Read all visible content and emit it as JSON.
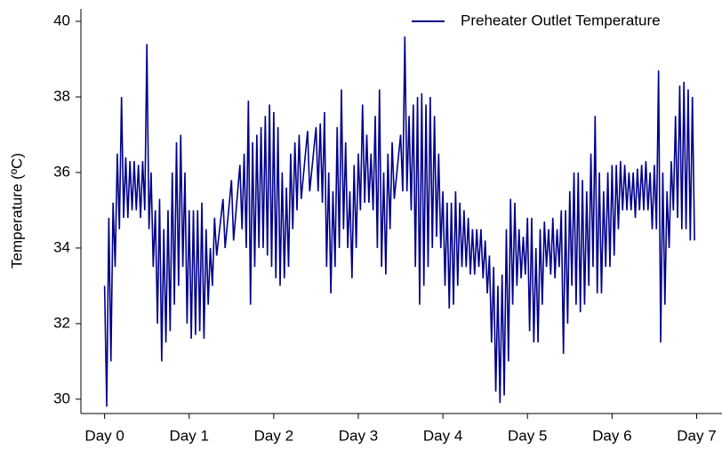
{
  "chart_data": {
    "type": "line",
    "ylabel": "Temperature (ºC)",
    "xlim": [
      -0.28,
      7.3
    ],
    "ylim": [
      29.62,
      40.33
    ],
    "xticks": [
      {
        "value": 0,
        "label": "Day 0"
      },
      {
        "value": 1,
        "label": "Day 1"
      },
      {
        "value": 2,
        "label": "Day 2"
      },
      {
        "value": 3,
        "label": "Day 3"
      },
      {
        "value": 4,
        "label": "Day 4"
      },
      {
        "value": 5,
        "label": "Day 5"
      },
      {
        "value": 6,
        "label": "Day 6"
      },
      {
        "value": 7,
        "label": "Day 7"
      }
    ],
    "yticks": [
      30,
      32,
      34,
      36,
      38,
      40
    ],
    "legend": "upper right",
    "x": [
      0,
      0.025,
      0.05,
      0.075,
      0.1,
      0.125,
      0.15,
      0.175,
      0.2,
      0.225,
      0.25,
      0.275,
      0.3,
      0.325,
      0.35,
      0.375,
      0.4,
      0.425,
      0.45,
      0.475,
      0.5,
      0.525,
      0.55,
      0.575,
      0.6,
      0.625,
      0.65,
      0.675,
      0.7,
      0.725,
      0.75,
      0.775,
      0.8,
      0.825,
      0.85,
      0.875,
      0.9,
      0.925,
      0.95,
      0.975,
      1,
      1.025,
      1.05,
      1.075,
      1.1,
      1.125,
      1.15,
      1.175,
      1.2,
      1.225,
      1.25,
      1.275,
      1.3,
      1.325,
      1.4,
      1.425,
      1.5,
      1.525,
      1.6,
      1.625,
      1.65,
      1.675,
      1.7,
      1.725,
      1.75,
      1.775,
      1.8,
      1.825,
      1.85,
      1.875,
      1.9,
      1.925,
      1.95,
      1.975,
      2,
      2.025,
      2.05,
      2.075,
      2.1,
      2.125,
      2.15,
      2.175,
      2.2,
      2.225,
      2.25,
      2.275,
      2.3,
      2.325,
      2.4,
      2.425,
      2.5,
      2.525,
      2.55,
      2.575,
      2.6,
      2.625,
      2.65,
      2.675,
      2.7,
      2.725,
      2.75,
      2.775,
      2.8,
      2.825,
      2.85,
      2.875,
      2.9,
      2.925,
      2.95,
      2.975,
      3,
      3.025,
      3.05,
      3.075,
      3.1,
      3.125,
      3.15,
      3.175,
      3.2,
      3.225,
      3.25,
      3.275,
      3.3,
      3.325,
      3.35,
      3.375,
      3.4,
      3.425,
      3.5,
      3.525,
      3.55,
      3.575,
      3.6,
      3.625,
      3.65,
      3.675,
      3.7,
      3.725,
      3.75,
      3.775,
      3.8,
      3.825,
      3.85,
      3.875,
      3.9,
      3.925,
      3.95,
      3.975,
      4,
      4.025,
      4.05,
      4.075,
      4.1,
      4.125,
      4.15,
      4.175,
      4.2,
      4.225,
      4.25,
      4.275,
      4.3,
      4.325,
      4.35,
      4.375,
      4.4,
      4.425,
      4.45,
      4.475,
      4.5,
      4.525,
      4.55,
      4.575,
      4.6,
      4.625,
      4.65,
      4.675,
      4.7,
      4.725,
      4.75,
      4.775,
      4.8,
      4.825,
      4.85,
      4.875,
      4.9,
      4.925,
      4.95,
      4.975,
      5,
      5.025,
      5.05,
      5.075,
      5.1,
      5.125,
      5.15,
      5.175,
      5.2,
      5.225,
      5.25,
      5.275,
      5.3,
      5.325,
      5.35,
      5.375,
      5.4,
      5.425,
      5.45,
      5.475,
      5.5,
      5.525,
      5.55,
      5.575,
      5.6,
      5.625,
      5.65,
      5.675,
      5.7,
      5.725,
      5.75,
      5.775,
      5.8,
      5.825,
      5.85,
      5.875,
      5.9,
      5.925,
      5.95,
      5.975,
      6,
      6.025,
      6.05,
      6.075,
      6.1,
      6.125,
      6.15,
      6.175,
      6.2,
      6.225,
      6.25,
      6.275,
      6.3,
      6.325,
      6.35,
      6.375,
      6.4,
      6.425,
      6.45,
      6.475,
      6.5,
      6.525,
      6.55,
      6.575,
      6.6,
      6.625,
      6.65,
      6.675,
      6.7,
      6.725,
      6.75,
      6.775,
      6.8,
      6.825,
      6.85,
      6.875,
      6.9,
      6.925,
      6.95,
      6.975
    ],
    "series": [
      {
        "name": "Preheater Outlet Temperature",
        "color": "#00008b",
        "values": [
          33,
          29.8,
          34.8,
          31,
          35.2,
          33.5,
          36.5,
          34.5,
          38,
          34.8,
          36.4,
          34.8,
          36.3,
          35,
          36.3,
          35,
          36.2,
          34.8,
          36.3,
          35,
          39.4,
          34.5,
          36,
          33.5,
          35,
          32,
          35.3,
          31,
          34.5,
          31.5,
          35,
          31.8,
          36,
          32.5,
          36.8,
          33,
          37,
          33.5,
          36,
          32,
          35,
          31.6,
          35,
          31.7,
          35,
          31.8,
          35.2,
          31.6,
          34.5,
          32.5,
          34,
          33,
          34.8,
          33.8,
          35.3,
          34,
          35.8,
          34.2,
          36.2,
          34.5,
          36.5,
          34,
          37.9,
          32.5,
          36.8,
          33.5,
          37,
          34,
          37.2,
          34,
          37.5,
          33.8,
          37.8,
          33.5,
          37.6,
          33.2,
          37.2,
          33,
          36,
          33.2,
          35.6,
          33.5,
          36.5,
          34.5,
          36.8,
          35,
          37,
          35.3,
          37.1,
          35.5,
          37.2,
          35.5,
          37.3,
          35.2,
          37.6,
          33.5,
          36,
          32.8,
          35.5,
          33.5,
          37.2,
          34,
          38.2,
          34.5,
          36.8,
          34,
          35.5,
          33.2,
          36.2,
          34,
          36.5,
          35,
          37.8,
          35.2,
          37,
          35.2,
          36.5,
          35,
          37.5,
          34,
          38.2,
          33.5,
          36,
          33.3,
          36.5,
          34.5,
          36.8,
          35.3,
          37,
          35.5,
          39.6,
          35.5,
          37.5,
          35,
          37.8,
          33.5,
          38,
          32.5,
          38.1,
          33,
          37.8,
          33.5,
          38,
          34,
          37.5,
          34.3,
          36.5,
          34,
          35.5,
          33,
          35.2,
          32.4,
          35.2,
          32.5,
          35.5,
          33,
          35.2,
          33.5,
          35,
          33.5,
          34.8,
          33.3,
          34.5,
          33.3,
          34.5,
          33.5,
          34.5,
          33.2,
          34.2,
          32.8,
          33.8,
          31.5,
          33.5,
          30.2,
          33,
          29.9,
          33.3,
          30.1,
          34.5,
          31,
          35.3,
          32.5,
          35.2,
          33,
          34.5,
          33.2,
          34.3,
          33.3,
          34.8,
          31.8,
          34.8,
          31.5,
          34,
          31.5,
          34.5,
          32.5,
          34.7,
          33.5,
          34.5,
          33.3,
          34.8,
          33.2,
          34.5,
          33.5,
          35,
          31.2,
          35,
          32,
          35.5,
          33,
          36,
          32.5,
          36,
          32.3,
          35.8,
          32.5,
          35.5,
          33,
          36.5,
          33.5,
          37.5,
          32.8,
          36,
          32.8,
          35.5,
          33.5,
          36,
          33.5,
          36.2,
          33.8,
          36.2,
          34.5,
          36.3,
          35,
          36.2,
          35,
          36,
          35,
          36,
          34.8,
          36.1,
          35,
          36.2,
          35,
          36.3,
          35,
          36,
          34.5,
          36.2,
          34.5,
          38.7,
          31.5,
          36,
          32.5,
          35.5,
          34,
          36.3,
          35,
          37.5,
          34.8,
          38.3,
          34.5,
          38.4,
          34.5,
          38.2,
          34.2,
          38,
          34.2
        ]
      }
    ]
  }
}
